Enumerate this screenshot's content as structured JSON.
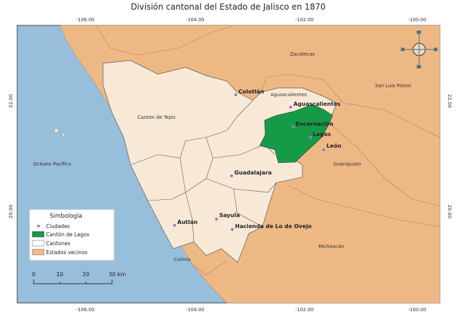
{
  "title": "División cantonal del Estado de Jalisco en 1870",
  "axes": {
    "longitude_ticks": [
      "-106.00",
      "-104.00",
      "-102.00",
      "-100.00"
    ],
    "latitude_ticks": [
      "22.00",
      "20.00"
    ]
  },
  "regions": {
    "zacatecas": "Zacatecas",
    "aguascalientes": "Aguascalientes",
    "slp": "San Luis Potosí",
    "tepic": "Cantón de Tepic",
    "ocean": "Océano Pacífico",
    "guanajuato": "Guanajuato",
    "michoacan": "Michoacán",
    "colima": "Colima"
  },
  "cities": [
    {
      "name": "Colotlán"
    },
    {
      "name": "Aguascalientes"
    },
    {
      "name": "Encarnación"
    },
    {
      "name": "Lagos"
    },
    {
      "name": "León"
    },
    {
      "name": "Guadalajara"
    },
    {
      "name": "Sayula"
    },
    {
      "name": "Hacienda de Lo de Ovejo"
    },
    {
      "name": "Autlán"
    }
  ],
  "legend": {
    "title": "Simbología",
    "items": [
      {
        "label": "Ciudades",
        "color": "#9b7fc0"
      },
      {
        "label": "Cantón de Lagos",
        "color": "#159a48"
      },
      {
        "label": "Cantones",
        "color": "#ffffff"
      },
      {
        "label": "Estados vecinos",
        "color": "#f1bd85"
      }
    ]
  },
  "scale_bar": {
    "labels": [
      "0",
      "10",
      "20",
      "30 km"
    ]
  },
  "colors": {
    "ocean": "#97bedb",
    "neighbors": "#eeb885",
    "jalisco": "#f8e8d6",
    "lagos": "#159a48",
    "city": "#9b7fc0"
  }
}
